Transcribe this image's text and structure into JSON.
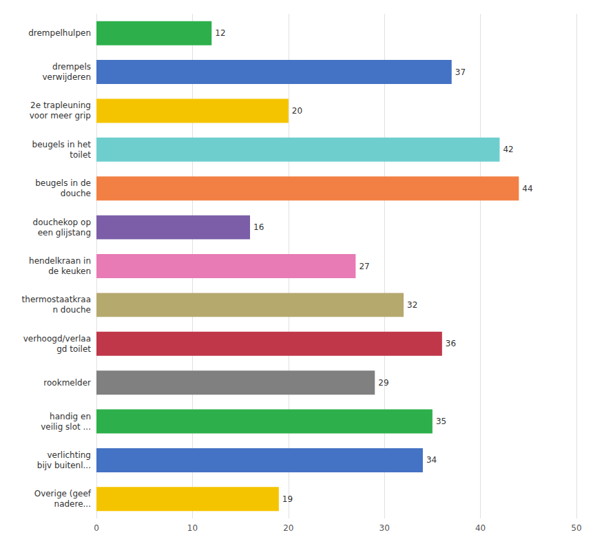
{
  "chart_data": {
    "type": "bar",
    "orientation": "horizontal",
    "categories": [
      "Overige (geef\nnadere...",
      "verlichting\nbijv buitenl...",
      "handig en\nveilig slot ...",
      "rookmelder",
      "verhoogd/verlaa\ngd toilet",
      "thermostaatkraa\nn douche",
      "hendelkraan in\nde keuken",
      "douchekop op\neen glijstang",
      "beugels in de\ndouche",
      "beugels in het\ntoilet",
      "2e trapleuning\nvoor meer grip",
      "drempels\nverwijderen",
      "drempelhulpen"
    ],
    "values": [
      19,
      34,
      35,
      29,
      36,
      32,
      27,
      16,
      44,
      42,
      20,
      37,
      12
    ],
    "colors": [
      "#f5c400",
      "#4472c4",
      "#2db04b",
      "#808080",
      "#c0374a",
      "#b5a96e",
      "#e87ab5",
      "#7b5ea7",
      "#f28044",
      "#6ecece",
      "#f5c400",
      "#4472c4",
      "#2db04b"
    ],
    "xlim": [
      0,
      50
    ],
    "xticks": [
      0,
      10,
      20,
      30,
      40,
      50
    ],
    "grid": true,
    "data_labels": true
  }
}
